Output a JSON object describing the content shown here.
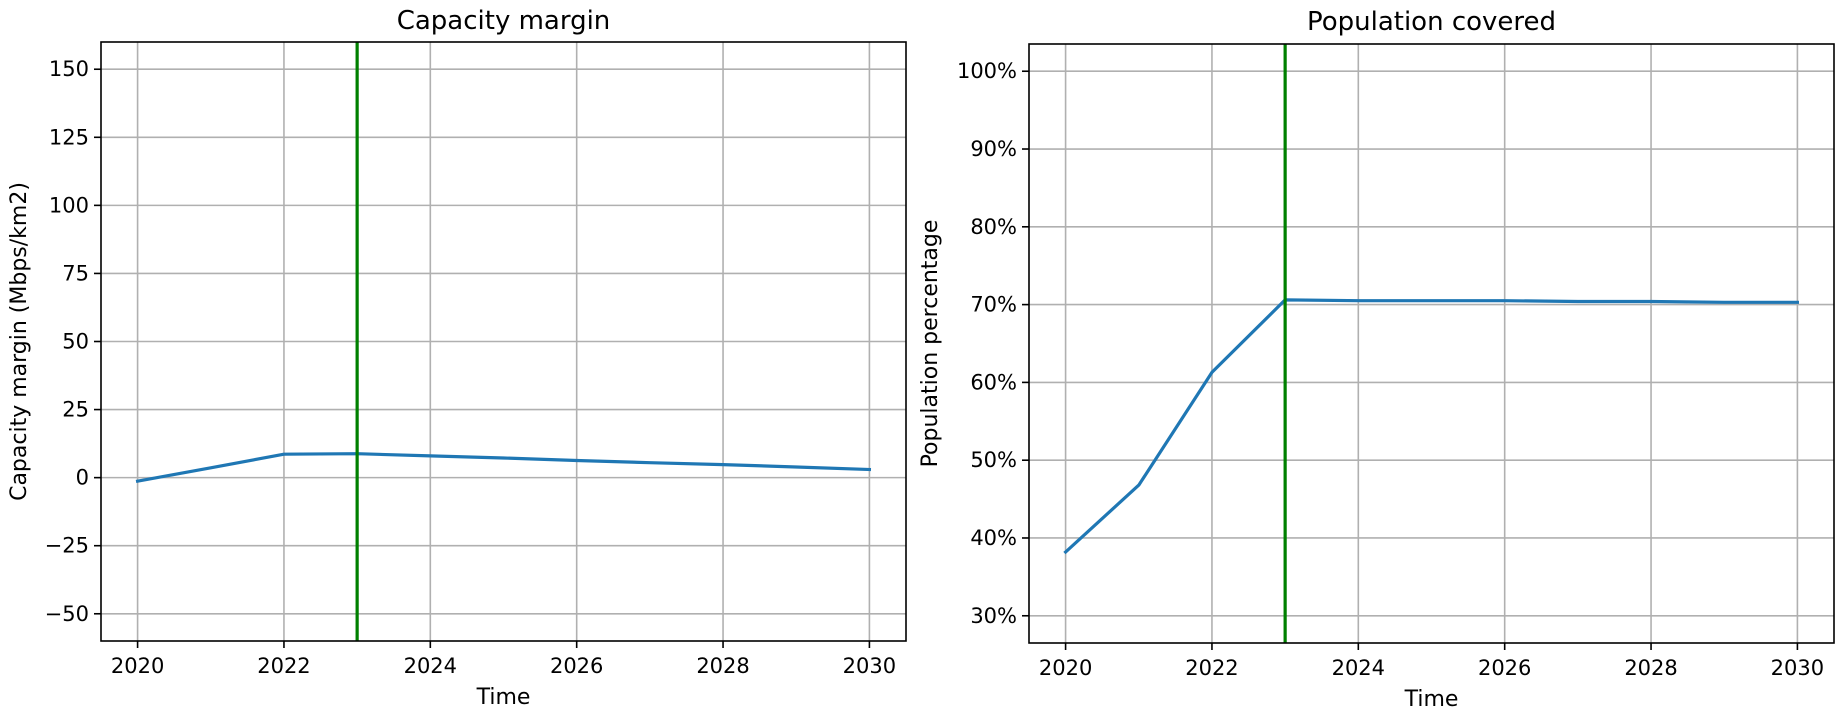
{
  "chart_data": [
    {
      "type": "line",
      "title": "Capacity margin",
      "xlabel": "Time",
      "ylabel": "Capacity margin (Mbps/km2)",
      "xlim": [
        2019.5,
        2030.5
      ],
      "ylim": [
        -60,
        160
      ],
      "xticks": [
        2020,
        2022,
        2024,
        2026,
        2028,
        2030
      ],
      "xtick_labels": [
        "2020",
        "2022",
        "2024",
        "2026",
        "2028",
        "2030"
      ],
      "yticks": [
        -50,
        -25,
        0,
        25,
        50,
        75,
        100,
        125,
        150
      ],
      "ytick_labels": [
        "−50",
        "−25",
        "0",
        "25",
        "50",
        "75",
        "100",
        "125",
        "150"
      ],
      "grid": true,
      "vline": {
        "x": 2023,
        "color": "#008000"
      },
      "series": [
        {
          "color": "#1f77b4",
          "x": [
            2020,
            2021,
            2022,
            2023,
            2024,
            2025,
            2026,
            2027,
            2028,
            2029,
            2030
          ],
          "y": [
            -1.3,
            3.6,
            8.6,
            8.8,
            8.0,
            7.2,
            6.3,
            5.5,
            4.8,
            3.9,
            3.0
          ]
        }
      ]
    },
    {
      "type": "line",
      "title": "Population covered",
      "xlabel": "Time",
      "ylabel": "Population percentage",
      "xlim": [
        2019.5,
        2030.5
      ],
      "ylim": [
        26.5,
        103.5
      ],
      "xticks": [
        2020,
        2022,
        2024,
        2026,
        2028,
        2030
      ],
      "xtick_labels": [
        "2020",
        "2022",
        "2024",
        "2026",
        "2028",
        "2030"
      ],
      "yticks": [
        30,
        40,
        50,
        60,
        70,
        80,
        90,
        100
      ],
      "ytick_labels": [
        "30%",
        "40%",
        "50%",
        "60%",
        "70%",
        "80%",
        "90%",
        "100%"
      ],
      "grid": true,
      "vline": {
        "x": 2023,
        "color": "#008000"
      },
      "series": [
        {
          "color": "#1f77b4",
          "x": [
            2020,
            2021,
            2022,
            2023,
            2024,
            2025,
            2026,
            2027,
            2028,
            2029,
            2030
          ],
          "y": [
            38.2,
            46.8,
            61.3,
            70.6,
            70.5,
            70.5,
            70.5,
            70.4,
            70.4,
            70.3,
            70.3
          ]
        }
      ]
    }
  ]
}
